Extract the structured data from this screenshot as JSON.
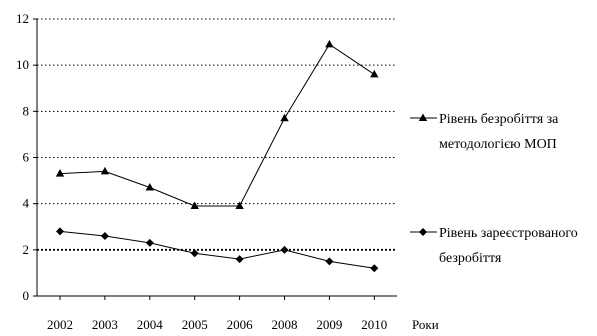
{
  "chart_data": {
    "type": "line",
    "title": "",
    "xlabel": "Роки",
    "ylabel": "",
    "categories": [
      "2002",
      "2003",
      "2004",
      "2005",
      "2006",
      "2008",
      "2009",
      "2010"
    ],
    "ylim": [
      0,
      12
    ],
    "yticks": [
      0,
      2,
      4,
      6,
      8,
      10,
      12
    ],
    "grid": "horizontal dotted",
    "legend_position": "right",
    "series": [
      {
        "name": "Рівень безробіття за методологією МОП",
        "legend_lines": [
          "Рівень безробіття за",
          "методологією МОП"
        ],
        "marker": "triangle",
        "color": "#000000",
        "values": [
          5.3,
          5.4,
          4.7,
          3.9,
          3.9,
          7.7,
          10.9,
          9.6
        ]
      },
      {
        "name": "Рівень зареєстрованого безробіття",
        "legend_lines": [
          "Рівень зареєстрованого",
          "безробіття"
        ],
        "marker": "diamond",
        "color": "#000000",
        "values": [
          2.8,
          2.6,
          2.3,
          1.85,
          1.6,
          2.0,
          1.5,
          1.2
        ]
      }
    ]
  }
}
